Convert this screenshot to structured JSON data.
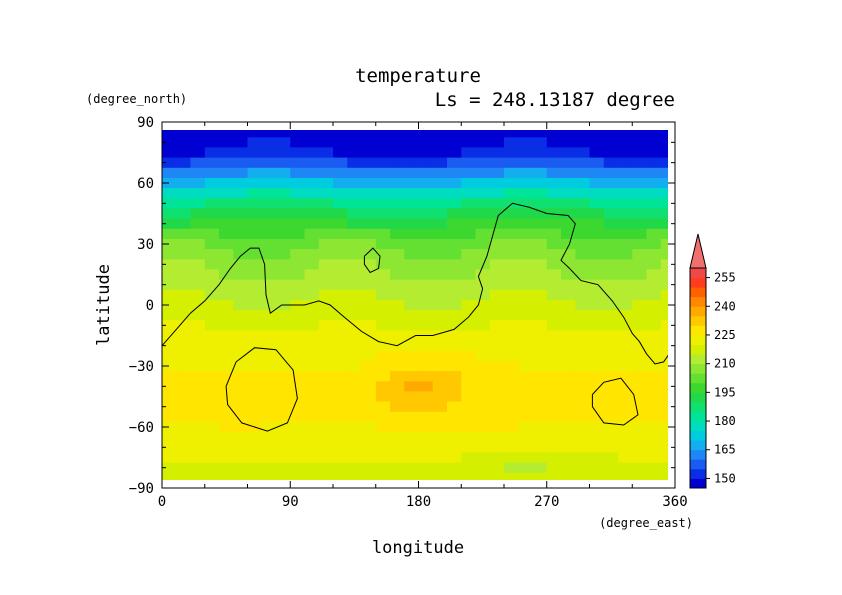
{
  "chart_data": {
    "type": "heatmap",
    "title": "temperature",
    "subtitle": "Ls = 248.13187 degree",
    "xlabel": "longitude",
    "ylabel": "latitude",
    "x_unit": "(degree_east)",
    "y_unit": "(degree_north)",
    "xlim": [
      0,
      360
    ],
    "ylim": [
      -90,
      90
    ],
    "x_ticks": [
      0,
      90,
      180,
      270,
      360
    ],
    "y_ticks": [
      -90,
      -60,
      -30,
      0,
      30,
      60,
      90
    ],
    "x_tick_labels": [
      "0",
      "90",
      "180",
      "270",
      "360"
    ],
    "y_tick_labels": [
      "−90",
      "−60",
      "−30",
      "0",
      "30",
      "60",
      "90"
    ],
    "colorbar": {
      "levels": [
        145,
        150,
        155,
        160,
        165,
        170,
        175,
        180,
        185,
        190,
        195,
        200,
        205,
        210,
        215,
        220,
        225,
        230,
        235,
        240,
        245,
        250,
        255,
        260
      ],
      "colors": [
        "#0000d2",
        "#0a2ee6",
        "#1a5cf2",
        "#1e86f5",
        "#12aef0",
        "#00cce0",
        "#00dcc0",
        "#00e498",
        "#10e070",
        "#20d848",
        "#3cd830",
        "#64e032",
        "#8ce632",
        "#b4ec32",
        "#d4f000",
        "#eef000",
        "#ffe600",
        "#ffc800",
        "#ffaa00",
        "#ff8800",
        "#ff6000",
        "#ff3c1e",
        "#f04848"
      ],
      "overflow_color": "#f07070",
      "tick_values": [
        150,
        165,
        180,
        195,
        210,
        225,
        240,
        255
      ],
      "tick_labels": [
        "150",
        "165",
        "180",
        "195",
        "210",
        "225",
        "240",
        "255"
      ]
    },
    "grid": {
      "lat": [
        85,
        80,
        75,
        70,
        65,
        60,
        55,
        50,
        45,
        40,
        35,
        30,
        25,
        20,
        15,
        10,
        5,
        0,
        -5,
        -10,
        -15,
        -20,
        -25,
        -30,
        -35,
        -40,
        -45,
        -50,
        -55,
        -60,
        -65,
        -70,
        -75,
        -80,
        -85
      ],
      "lon_step": 10,
      "temperature_profile": [
        146,
        148,
        150,
        156,
        163,
        170,
        178,
        185,
        191,
        196,
        200,
        204,
        206,
        209,
        210,
        212,
        214,
        216,
        217,
        219,
        222,
        223,
        224,
        224,
        225,
        225,
        225,
        225,
        225,
        224,
        223,
        221,
        220,
        217,
        219
      ]
    },
    "contours": [
      {
        "label": "continent-outline",
        "points": [
          [
            0,
            -20
          ],
          [
            10,
            -12
          ],
          [
            20,
            -4
          ],
          [
            30,
            2
          ],
          [
            40,
            10
          ],
          [
            48,
            18
          ],
          [
            55,
            24
          ],
          [
            62,
            28
          ],
          [
            68,
            28
          ],
          [
            72,
            20
          ],
          [
            73,
            5
          ],
          [
            76,
            -4
          ],
          [
            84,
            0
          ],
          [
            100,
            0
          ],
          [
            110,
            2
          ],
          [
            118,
            0
          ],
          [
            128,
            -6
          ],
          [
            140,
            -13
          ],
          [
            152,
            -18
          ],
          [
            165,
            -20
          ],
          [
            178,
            -15
          ],
          [
            190,
            -15
          ],
          [
            205,
            -12
          ],
          [
            215,
            -6
          ],
          [
            222,
            0
          ],
          [
            225,
            8
          ],
          [
            222,
            14
          ],
          [
            228,
            24
          ],
          [
            232,
            34
          ],
          [
            236,
            44
          ],
          [
            246,
            50
          ],
          [
            258,
            48
          ],
          [
            270,
            45
          ],
          [
            285,
            44
          ],
          [
            290,
            40
          ],
          [
            286,
            30
          ],
          [
            280,
            22
          ],
          [
            286,
            18
          ],
          [
            294,
            12
          ],
          [
            306,
            10
          ],
          [
            316,
            2
          ],
          [
            324,
            -6
          ],
          [
            330,
            -14
          ],
          [
            335,
            -18
          ],
          [
            340,
            -24
          ],
          [
            346,
            -29
          ],
          [
            352,
            -28
          ],
          [
            360,
            -20
          ]
        ]
      },
      {
        "label": "island-north",
        "points": [
          [
            142,
            24
          ],
          [
            148,
            28
          ],
          [
            153,
            24
          ],
          [
            152,
            18
          ],
          [
            146,
            16
          ],
          [
            142,
            20
          ],
          [
            142,
            24
          ]
        ]
      },
      {
        "label": "crater-west",
        "points": [
          [
            45,
            -40
          ],
          [
            52,
            -28
          ],
          [
            65,
            -21
          ],
          [
            80,
            -22
          ],
          [
            92,
            -32
          ],
          [
            95,
            -46
          ],
          [
            88,
            -58
          ],
          [
            74,
            -62
          ],
          [
            56,
            -58
          ],
          [
            46,
            -49
          ],
          [
            45,
            -40
          ]
        ]
      },
      {
        "label": "crater-east",
        "points": [
          [
            302,
            -44
          ],
          [
            310,
            -38
          ],
          [
            322,
            -36
          ],
          [
            331,
            -44
          ],
          [
            334,
            -54
          ],
          [
            324,
            -59
          ],
          [
            310,
            -58
          ],
          [
            302,
            -50
          ],
          [
            302,
            -44
          ]
        ]
      }
    ]
  }
}
